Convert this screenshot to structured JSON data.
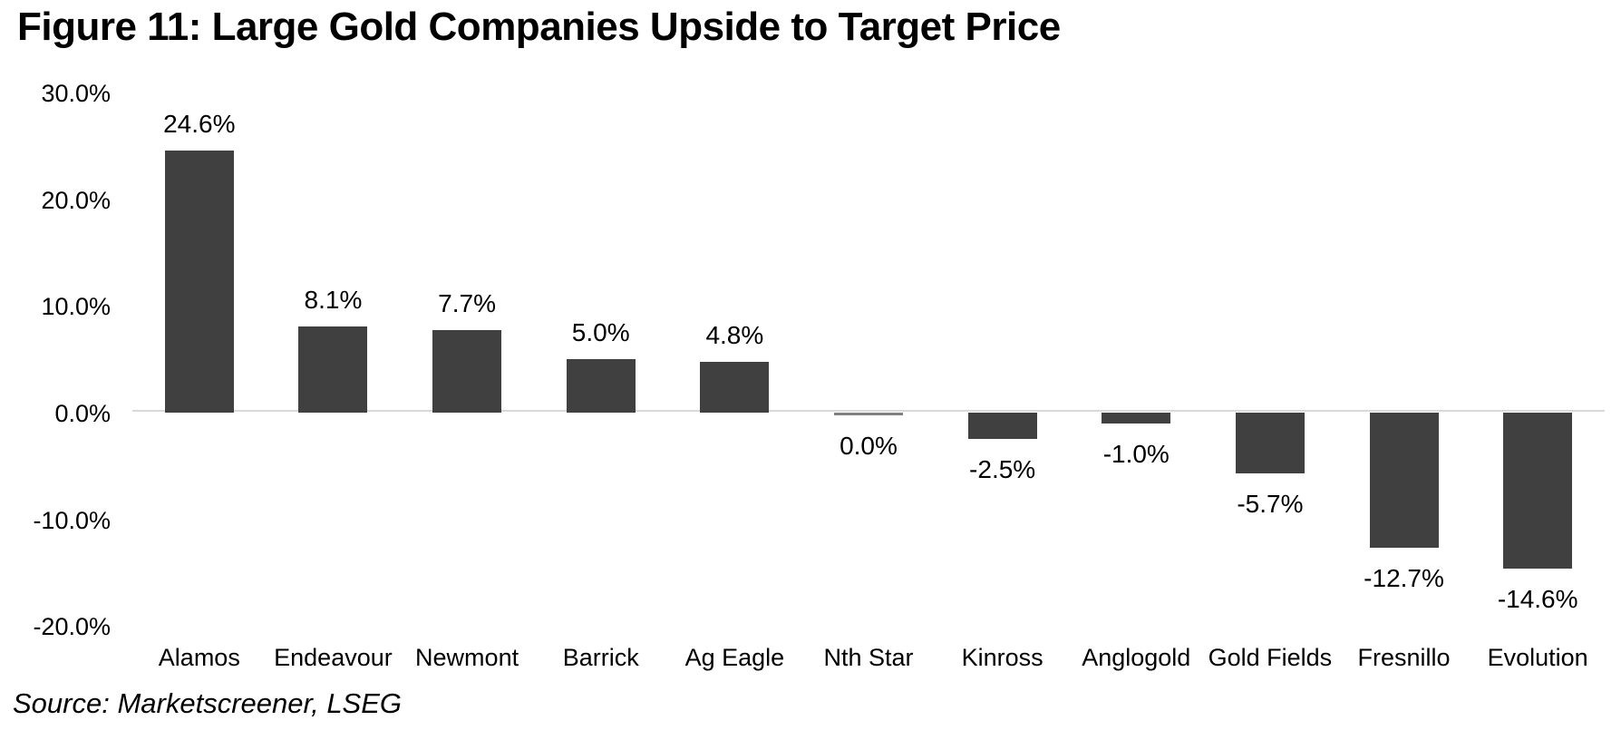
{
  "title": "Figure 11: Large Gold Companies Upside to Target Price",
  "source": "Source: Marketscreener, LSEG",
  "colors": {
    "bar": "#404040",
    "zero_bar": "#808080",
    "axis_line": "#d9d9d9",
    "text": "#000000",
    "background": "#ffffff"
  },
  "chart_data": {
    "type": "bar",
    "title": "Figure 11: Large Gold Companies Upside to Target Price",
    "categories": [
      "Alamos",
      "Endeavour",
      "Newmont",
      "Barrick",
      "Ag Eagle",
      "Nth Star",
      "Kinross",
      "Anglogold",
      "Gold Fields",
      "Fresnillo",
      "Evolution"
    ],
    "values": [
      24.6,
      8.1,
      7.7,
      5.0,
      4.8,
      0.0,
      -2.5,
      -1.0,
      -5.7,
      -12.7,
      -14.6
    ],
    "value_labels": [
      "24.6%",
      "8.1%",
      "7.7%",
      "5.0%",
      "4.8%",
      "0.0%",
      "-2.5%",
      "-1.0%",
      "-5.7%",
      "-12.7%",
      "-14.6%"
    ],
    "xlabel": "",
    "ylabel": "",
    "ylim": [
      -20,
      30
    ],
    "yticks": [
      30,
      20,
      10,
      0,
      -10,
      -20
    ],
    "ytick_labels": [
      "30.0%",
      "20.0%",
      "10.0%",
      "0.0%",
      "-10.0%",
      "-20.0%"
    ],
    "grid": false,
    "legend": "none",
    "bar_color": "#404040",
    "value_label_position": "outside-end"
  }
}
